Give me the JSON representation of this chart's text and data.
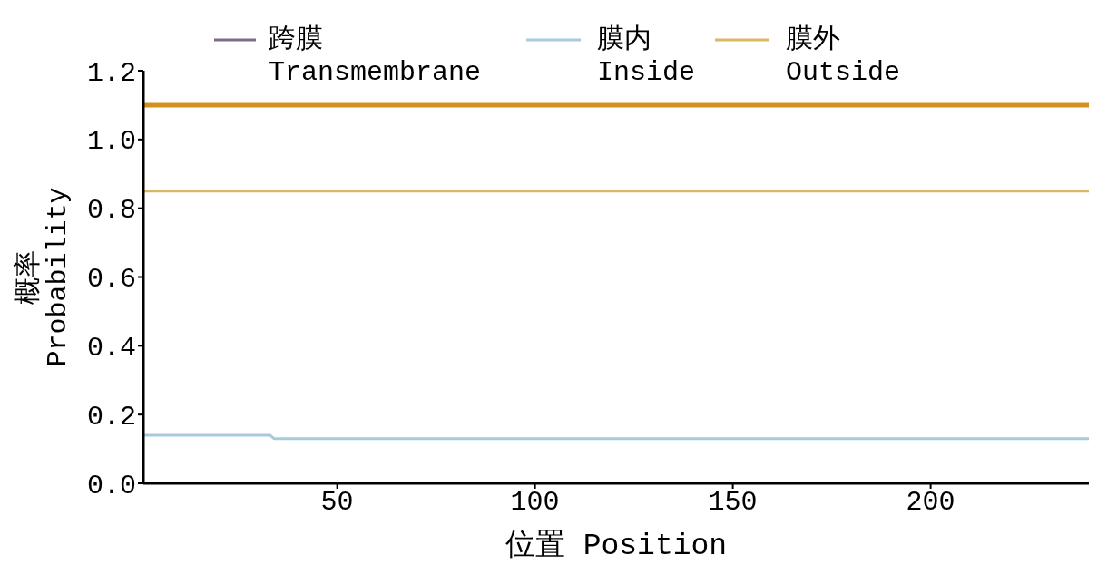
{
  "chart_data": {
    "type": "line",
    "xlabel": "位置 Position",
    "ylabel": "概率 Probability",
    "xlim": [
      1,
      240
    ],
    "xticks": [
      50,
      100,
      150,
      200
    ],
    "ylim": [
      0,
      1.2
    ],
    "yticks": [
      {
        "value": 0,
        "label": "0.0"
      },
      {
        "value": 0.2,
        "label": "0.2"
      },
      {
        "value": 0.4,
        "label": "0.4"
      },
      {
        "value": 0.6,
        "label": "0.6"
      },
      {
        "value": 0.8,
        "label": "0.8"
      },
      {
        "value": 1.0,
        "label": "1.0"
      },
      {
        "value": 1.2,
        "label": "1.2"
      }
    ],
    "grid": false,
    "legend": "top",
    "marker": "none",
    "line_style": "solid",
    "series": [
      {
        "name": "跨膜 Transmembrane",
        "color": "#7b6b8c",
        "values": [
          null,
          null
        ]
      },
      {
        "name": "膜内 Inside",
        "color": "#a9c9dd",
        "x": [
          1,
          33,
          34,
          240
        ],
        "values": [
          0.14,
          0.14,
          0.13,
          0.13
        ]
      },
      {
        "name": "膜外 Outside",
        "color": "#d9b766",
        "x": [
          1,
          240
        ],
        "values": [
          0.85,
          0.85
        ]
      },
      {
        "color": "#d4901e",
        "x": [
          1,
          240
        ],
        "values": [
          1.1,
          1.1
        ]
      }
    ]
  }
}
